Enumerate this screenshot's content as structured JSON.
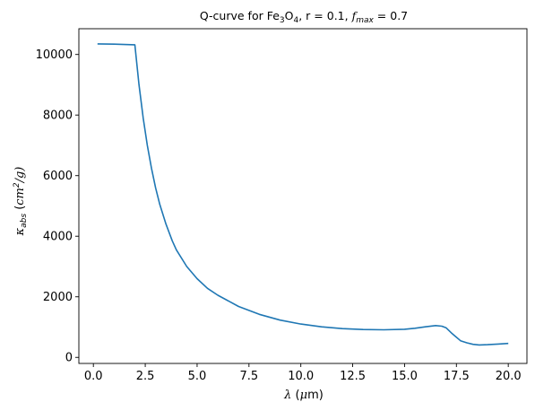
{
  "chart_data": {
    "type": "line",
    "title": {
      "prefix": "Q-curve for Fe",
      "sub1": "3",
      "mid": "O",
      "sub2": "4",
      "suffix": ", r = 0.1, ",
      "fvar": "f",
      "fsub": "max",
      "fsuffix": " = 0.7"
    },
    "xlabel": {
      "var": "λ",
      "unit_open": " (",
      "unit_var": "μ",
      "unit_rest": "m)"
    },
    "ylabel": {
      "var": "κ",
      "sub": "abs",
      "unit_open": " (",
      "unit_var": "cm",
      "sup": "2",
      "unit_rest": "/g)"
    },
    "xlim": [
      -0.7,
      20.9
    ],
    "ylim": [
      -200,
      10850
    ],
    "xticks": [
      0.0,
      2.5,
      5.0,
      7.5,
      10.0,
      12.5,
      15.0,
      17.5,
      20.0
    ],
    "xtick_labels": [
      "0.0",
      "2.5",
      "5.0",
      "7.5",
      "10.0",
      "12.5",
      "15.0",
      "17.5",
      "20.0"
    ],
    "yticks": [
      0,
      2000,
      4000,
      6000,
      8000,
      10000
    ],
    "ytick_labels": [
      "0",
      "2000",
      "4000",
      "6000",
      "8000",
      "10000"
    ],
    "grid": false,
    "color": "#1f77b4",
    "series": [
      {
        "x": [
          0.2,
          1.0,
          2.0,
          2.2,
          2.4,
          2.6,
          2.8,
          3.0,
          3.2,
          3.5,
          3.8,
          4.0,
          4.5,
          5.0,
          5.5,
          6.0,
          7.0,
          8.0,
          9.0,
          10.0,
          11.0,
          12.0,
          13.0,
          14.0,
          15.0,
          15.5,
          16.0,
          16.5,
          16.8,
          17.0,
          17.3,
          17.7,
          18.0,
          18.3,
          18.6,
          19.0,
          19.5,
          20.0
        ],
        "y": [
          10350,
          10340,
          10320,
          9000,
          7900,
          7000,
          6250,
          5600,
          5050,
          4400,
          3850,
          3550,
          3000,
          2600,
          2280,
          2050,
          1680,
          1420,
          1230,
          1100,
          1010,
          950,
          920,
          910,
          930,
          960,
          1010,
          1050,
          1030,
          980,
          780,
          550,
          480,
          430,
          410,
          420,
          440,
          460
        ]
      }
    ]
  }
}
